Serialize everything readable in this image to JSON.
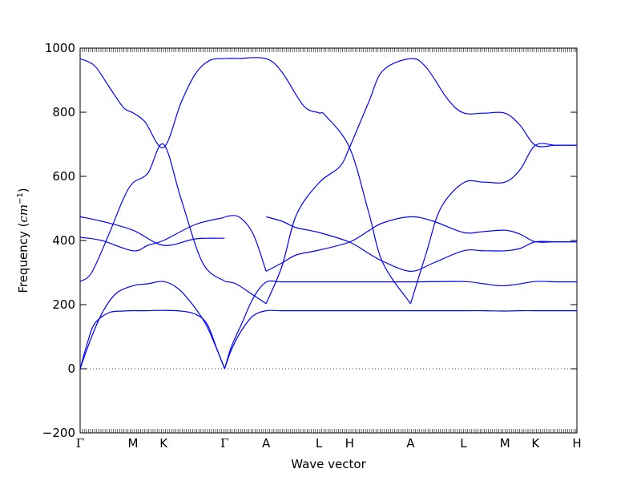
{
  "chart_data": {
    "type": "line",
    "title": "",
    "xlabel": "Wave vector",
    "ylabel_main": "Frequency (",
    "ylabel_unit": "cm",
    "ylabel_exp": "−1",
    "ylabel_close": ")",
    "ylim": [
      -200,
      1000
    ],
    "yticks": [
      -200,
      0,
      200,
      400,
      600,
      800,
      1000
    ],
    "x_ticks": [
      {
        "label": "Γ",
        "x": 0.0
      },
      {
        "label": "M",
        "x": 0.3668
      },
      {
        "label": "K",
        "x": 0.5786
      },
      {
        "label": "Γ",
        "x": 1.0022
      },
      {
        "label": "A",
        "x": 1.2897
      },
      {
        "label": "L",
        "x": 1.6565
      },
      {
        "label": "H",
        "x": 1.8683
      },
      {
        "label": "A",
        "x": 2.2919
      },
      {
        "label": "L",
        "x": 2.6587
      },
      {
        "label": "M",
        "x": 2.9461
      },
      {
        "label": "K",
        "x": 3.1579
      },
      {
        "label": "H",
        "x": 3.4453
      }
    ],
    "zero_line": true,
    "line_color": "#0000ff",
    "series": [
      {
        "x": [
          0,
          0.05,
          0.1,
          0.2,
          0.3,
          0.3668,
          0.45,
          0.5786,
          0.7,
          0.8,
          0.88,
          0.95,
          1.0022
        ],
        "y": [
          0,
          80,
          140,
          175,
          180,
          181,
          181,
          182,
          180,
          170,
          140,
          60,
          0
        ]
      },
      {
        "x": [
          0,
          0.08,
          0.16,
          0.25,
          0.3668,
          0.47,
          0.5786,
          0.68,
          0.78,
          0.87,
          0.94,
          1.0022
        ],
        "y": [
          0,
          100,
          180,
          235,
          259,
          265,
          272,
          250,
          200,
          140,
          70,
          0
        ]
      },
      {
        "x": [
          0,
          0.08,
          0.2,
          0.3,
          0.3668,
          0.47,
          0.5786,
          0.7,
          0.85,
          1.0022
        ],
        "y": [
          272,
          300,
          420,
          530,
          580,
          610,
          700,
          530,
          330,
          273
        ]
      },
      {
        "x": [
          0,
          0.1,
          0.2,
          0.3,
          0.3668,
          0.45,
          0.5786,
          0.7,
          0.8,
          0.9,
          1.0022
        ],
        "y": [
          967,
          945,
          880,
          815,
          798,
          770,
          690,
          830,
          920,
          962,
          967
        ]
      },
      {
        "x": [
          0,
          0.15,
          0.3668,
          0.47,
          0.5786,
          0.8,
          1.0022
        ],
        "y": [
          410,
          400,
          368,
          385,
          400,
          450,
          472
        ]
      },
      {
        "x": [
          0,
          0.15,
          0.3668,
          0.5786,
          0.8,
          1.0022
        ],
        "y": [
          474,
          460,
          432,
          385,
          405,
          407
        ]
      },
      {
        "x": [
          1.0022,
          1.05,
          1.12,
          1.2,
          1.2897,
          1.4,
          1.6565,
          2.0,
          2.2919,
          2.4,
          2.6587,
          2.8,
          2.9461,
          3.05,
          3.1579,
          3.3,
          3.4453
        ],
        "y": [
          0,
          60,
          120,
          165,
          181,
          181,
          181,
          181,
          181,
          181,
          181,
          181,
          180,
          181,
          181,
          181,
          181
        ]
      },
      {
        "x": [
          1.0022,
          1.05,
          1.12,
          1.2,
          1.2897,
          1.4,
          1.6565,
          2.0,
          2.2919,
          2.6587,
          2.8,
          2.9461,
          3.1579,
          3.3,
          3.4453
        ],
        "y": [
          0,
          70,
          140,
          220,
          270,
          271,
          271,
          271,
          271,
          272,
          265,
          259,
          272,
          271,
          271
        ]
      },
      {
        "x": [
          1.0022,
          1.1,
          1.2897,
          1.4,
          1.55,
          1.6565,
          1.7,
          1.8683,
          2.0,
          2.1,
          2.2919
        ],
        "y": [
          968,
          968,
          967,
          925,
          820,
          798,
          790,
          690,
          490,
          330,
          203
        ]
      },
      {
        "x": [
          1.0022,
          1.1,
          1.2,
          1.2897
        ],
        "y": [
          474,
          474,
          420,
          304
        ]
      },
      {
        "x": [
          1.0022,
          1.08,
          1.2,
          1.2897
        ],
        "y": [
          272,
          265,
          230,
          203
        ]
      },
      {
        "x": [
          1.2897,
          1.4,
          1.5,
          1.6565,
          1.8,
          1.8683,
          2.0,
          2.1,
          2.2919,
          2.4,
          2.55,
          2.6587,
          2.8,
          2.9461,
          3.05,
          3.1579,
          3.3,
          3.4453
        ],
        "y": [
          203,
          320,
          480,
          580,
          630,
          690,
          830,
          930,
          967,
          940,
          840,
          798,
          797,
          797,
          760,
          697,
          697,
          697
        ]
      },
      {
        "x": [
          1.2897,
          1.4,
          1.5,
          1.6565,
          1.8683,
          2.0,
          2.1,
          2.2919,
          2.45,
          2.6587,
          2.8,
          2.9461,
          3.05,
          3.1579,
          3.3,
          3.4453
        ],
        "y": [
          304,
          330,
          355,
          370,
          395,
          430,
          455,
          474,
          460,
          425,
          428,
          432,
          420,
          396,
          396,
          396
        ]
      },
      {
        "x": [
          1.2897,
          1.4,
          1.5,
          1.6565,
          1.8683,
          2.0,
          2.1,
          2.2919,
          2.45,
          2.6587,
          2.8,
          2.9461,
          3.05,
          3.1579,
          3.3,
          3.4453
        ],
        "y": [
          474,
          460,
          440,
          425,
          395,
          360,
          335,
          304,
          330,
          368,
          368,
          368,
          375,
          396,
          396,
          396
        ]
      },
      {
        "x": [
          2.2919,
          2.4,
          2.5,
          2.6587,
          2.8,
          2.9461,
          3.05,
          3.1579,
          3.3,
          3.4453
        ],
        "y": [
          203,
          360,
          500,
          580,
          582,
          582,
          620,
          697,
          697,
          697
        ]
      }
    ]
  }
}
